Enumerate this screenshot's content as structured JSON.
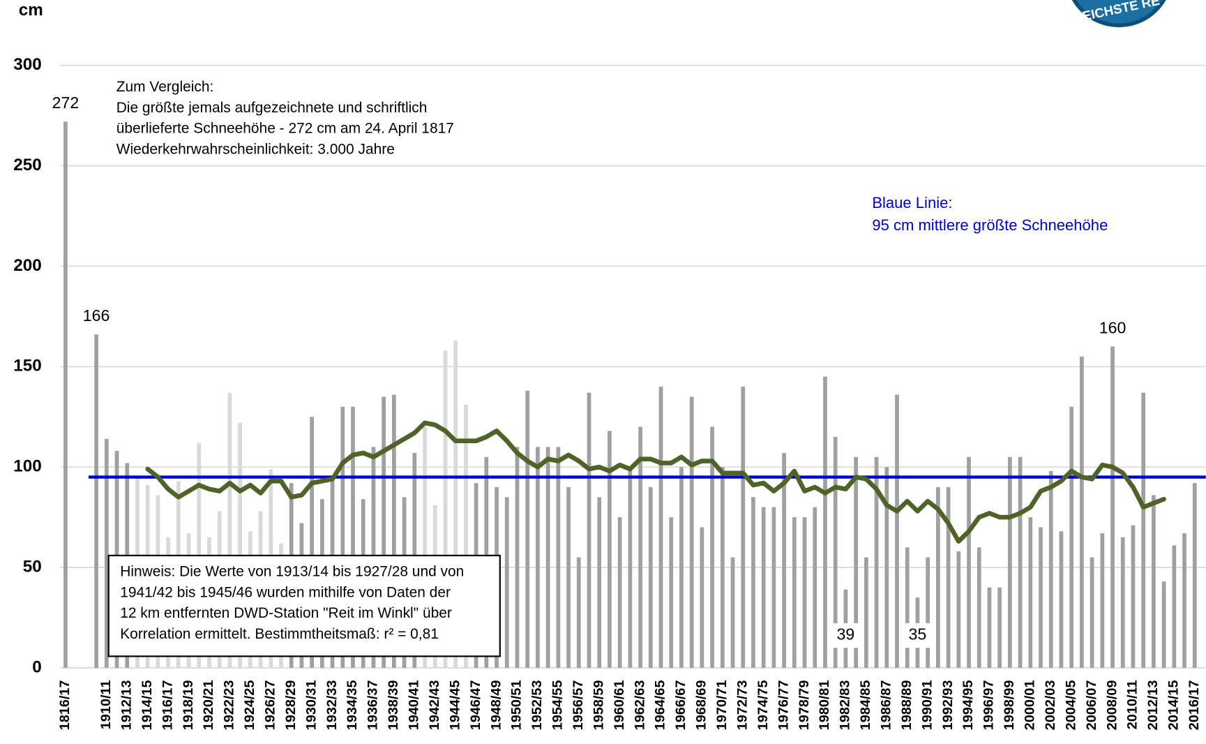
{
  "chart_data": {
    "type": "bar",
    "y_label": "cm",
    "logo_text": "EICHSTE RE",
    "ylim": [
      0,
      300
    ],
    "yticks": [
      0,
      50,
      100,
      150,
      200,
      250,
      300
    ],
    "grid": true,
    "categories": [
      "1816/17",
      null,
      null,
      null,
      "1910/11",
      null,
      "1912/13",
      null,
      "1914/15",
      null,
      "1916/17",
      null,
      "1918/19",
      null,
      "1920/21",
      null,
      "1922/23",
      null,
      "1924/25",
      null,
      "1926/27",
      null,
      "1928/29",
      null,
      "1930/31",
      null,
      "1932/33",
      null,
      "1934/35",
      null,
      "1936/37",
      null,
      "1938/39",
      null,
      "1940/41",
      null,
      "1942/43",
      null,
      "1944/45",
      null,
      "1946/47",
      null,
      "1948/49",
      null,
      "1950/51",
      null,
      "1952/53",
      null,
      "1954/55",
      null,
      "1956/57",
      null,
      "1958/59",
      null,
      "1960/61",
      null,
      "1962/63",
      null,
      "1964/65",
      null,
      "1966/67",
      null,
      "1968/69",
      null,
      "1970/71",
      null,
      "1972/73",
      null,
      "1974/75",
      null,
      "1976/77",
      null,
      "1978/79",
      null,
      "1980/81",
      null,
      "1982/83",
      null,
      "1984/85",
      null,
      "1986/87",
      null,
      "1988/89",
      null,
      "1990/91",
      null,
      "1992/93",
      null,
      "1994/95",
      null,
      "1996/97",
      null,
      "1998/99",
      null,
      "2000/01",
      null,
      "2002/03",
      null,
      "2004/05",
      null,
      "2006/07",
      null,
      "2008/09",
      null,
      "2010/11",
      null,
      "2012/13",
      null,
      "2014/15",
      null,
      "2016/17"
    ],
    "series": [
      {
        "color": "#a0a0a0",
        "values": [
          272,
          null,
          null,
          166,
          114,
          108,
          102,
          null,
          null,
          null,
          null,
          null,
          null,
          null,
          null,
          null,
          null,
          null,
          null,
          null,
          null,
          null,
          92,
          72,
          125,
          84,
          95,
          130,
          130,
          84,
          110,
          135,
          136,
          85,
          107,
          null,
          null,
          null,
          null,
          null,
          92,
          105,
          90,
          85,
          110,
          138,
          110,
          110,
          110,
          90,
          55,
          137,
          85,
          118,
          75,
          100,
          120,
          90,
          140,
          75,
          100,
          135,
          70,
          120,
          100,
          55,
          140,
          85,
          80,
          80,
          107,
          75,
          75,
          80,
          145,
          115,
          39,
          105,
          55,
          105,
          100,
          136,
          60,
          35,
          55,
          90,
          90,
          58,
          105,
          60,
          40,
          40,
          105,
          105,
          75,
          70,
          98,
          68,
          130,
          155,
          55,
          67,
          160,
          65,
          71,
          137,
          86,
          43,
          61,
          67,
          92
        ],
        "value_labels": [
          "272",
          null,
          null,
          "166",
          null,
          null,
          null,
          null,
          null,
          null,
          null,
          null,
          null,
          null,
          null,
          null,
          null,
          null,
          null,
          null,
          null,
          null,
          null,
          null,
          null,
          null,
          null,
          null,
          null,
          null,
          null,
          null,
          null,
          null,
          null,
          null,
          null,
          null,
          null,
          null,
          null,
          null,
          null,
          null,
          null,
          null,
          null,
          null,
          null,
          null,
          null,
          null,
          null,
          null,
          null,
          null,
          null,
          null,
          null,
          null,
          null,
          null,
          null,
          null,
          null,
          null,
          null,
          null,
          null,
          null,
          null,
          null,
          null,
          null,
          null,
          null,
          "39",
          null,
          null,
          null,
          null,
          null,
          null,
          "35",
          null,
          null,
          null,
          null,
          null,
          null,
          null,
          null,
          null,
          null,
          null,
          null,
          null,
          null,
          null,
          null,
          null,
          null,
          "160",
          null,
          null,
          null,
          null,
          null,
          null,
          null,
          null
        ]
      },
      {
        "color": "#d9d9d9",
        "values": [
          null,
          null,
          null,
          null,
          null,
          null,
          null,
          95,
          91,
          86,
          65,
          93,
          67,
          112,
          65,
          78,
          137,
          122,
          68,
          78,
          99,
          62,
          null,
          null,
          null,
          null,
          null,
          null,
          null,
          null,
          null,
          null,
          null,
          null,
          null,
          120,
          81,
          158,
          163,
          131,
          null,
          null,
          null,
          null,
          null,
          null,
          null,
          null,
          null,
          null,
          null,
          null,
          null,
          null,
          null,
          null,
          null,
          null,
          null,
          null,
          null,
          null,
          null,
          null,
          null,
          null,
          null,
          null,
          null,
          null,
          null,
          null,
          null,
          null,
          null,
          null,
          null,
          null,
          null,
          null,
          null,
          null,
          null,
          null,
          null,
          null,
          null,
          null,
          null,
          null,
          null,
          null,
          null,
          null,
          null,
          null,
          null,
          null,
          null,
          null,
          null,
          null,
          null,
          null,
          null,
          null,
          null,
          null,
          null,
          null,
          null
        ]
      },
      {
        "type": "line",
        "color": "#4f6228",
        "values": [
          null,
          null,
          null,
          null,
          null,
          null,
          null,
          null,
          99,
          95,
          89,
          85,
          88,
          91,
          89,
          88,
          92,
          88,
          91,
          87,
          93,
          93,
          85,
          86,
          92,
          93,
          94,
          102,
          106,
          107,
          105,
          108,
          111,
          114,
          117,
          122,
          121,
          118,
          113,
          113,
          113,
          115,
          118,
          113,
          107,
          103,
          100,
          104,
          103,
          106,
          103,
          99,
          100,
          98,
          101,
          99,
          104,
          104,
          102,
          102,
          105,
          101,
          103,
          103,
          97,
          97,
          97,
          91,
          92,
          88,
          92,
          98,
          88,
          90,
          87,
          90,
          89,
          95,
          94,
          89,
          81,
          78,
          83,
          78,
          83,
          79,
          72,
          63,
          68,
          75,
          77,
          75,
          75,
          77,
          80,
          88,
          90,
          93,
          98,
          95,
          94,
          101,
          100,
          97,
          90,
          80,
          82,
          84,
          null,
          null,
          null
        ]
      }
    ],
    "reference_line": {
      "value": 95,
      "color": "#0000cc"
    },
    "annotations": {
      "comparison": [
        "Zum Vergleich:",
        "Die größte jemals aufgezeichnete und schriftlich",
        "überlieferte Schneehöhe -  272 cm am 24. April 1817",
        "Wiederkehrwahrscheinlichkeit: 3.000 Jahre"
      ],
      "blue_line": [
        "Blaue Linie:",
        "95 cm mittlere größte Schneehöhe"
      ],
      "note": [
        "Hinweis: Die Werte von 1913/14 bis 1927/28 und von",
        "1941/42 bis 1945/46 wurden mithilfe von Daten der",
        "12 km entfernten DWD-Station \"Reit im Winkl\" über",
        "Korrelation ermittelt. Bestimmtheitsmaß: r² = 0,81"
      ]
    }
  }
}
